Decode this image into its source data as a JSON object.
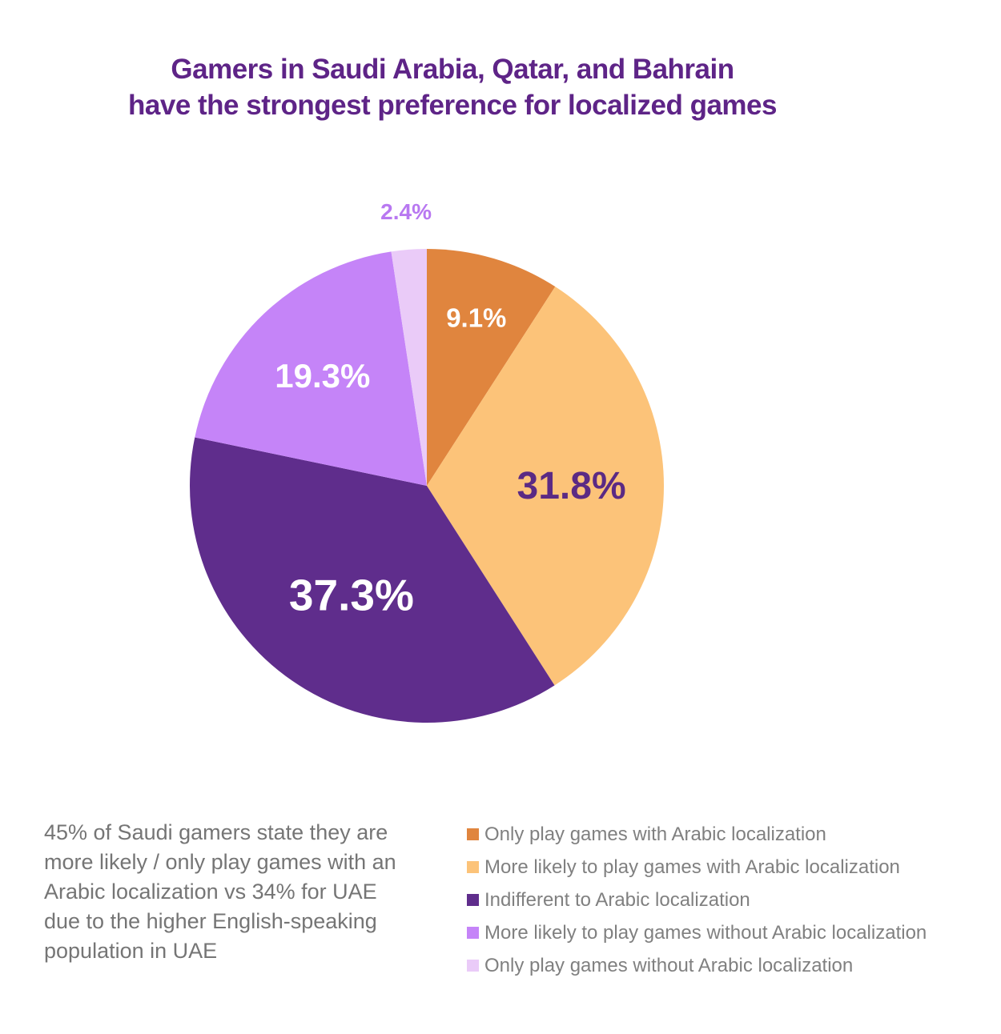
{
  "title": {
    "line1": "Gamers in Saudi Arabia, Qatar, and Bahrain",
    "line2": "have the strongest preference for localized games",
    "color": "#5E2487"
  },
  "annotation": {
    "text": "45% of Saudi gamers state they are more likely / only play games with an Arabic localization vs 34% for UAE due to the higher English-speaking population in UAE",
    "color": "#757575"
  },
  "legend": {
    "text_color": "#808080",
    "items": [
      {
        "label": "Only play games with Arabic localization",
        "color": "#E0853E"
      },
      {
        "label": "More likely to play games with Arabic localization",
        "color": "#FCC379"
      },
      {
        "label": "Indifferent to Arabic localization",
        "color": "#5F2D8C"
      },
      {
        "label": "More likely to play games without Arabic localization",
        "color": "#C584F8"
      },
      {
        "label": "Only play games without Arabic localization",
        "color": "#EACBF8"
      }
    ]
  },
  "chart_data": {
    "type": "pie",
    "title": "Gamers in Saudi Arabia, Qatar, and Bahrain have the strongest preference for localized games",
    "categories": [
      "Only play games with Arabic localization",
      "More likely to play games with Arabic localization",
      "Indifferent to Arabic localization",
      "More likely to play games without Arabic localization",
      "Only play games without Arabic localization"
    ],
    "values": [
      9.1,
      31.8,
      37.3,
      19.3,
      2.4
    ],
    "labels": [
      "9.1%",
      "31.8%",
      "37.3%",
      "19.3%",
      "2.4%"
    ],
    "colors": [
      "#E0853E",
      "#FCC379",
      "#5F2D8C",
      "#C584F8",
      "#EACBF8"
    ],
    "start_angle_deg": 0,
    "direction": "clockwise",
    "legend_position": "bottom-right",
    "slice_label_styles": [
      {
        "radius_frac": 0.74,
        "color": "#FFFFFF",
        "size": 33
      },
      {
        "radius_frac": 0.61,
        "color": "#5B2A84",
        "size": 48
      },
      {
        "radius_frac": 0.56,
        "color": "#FFFFFF",
        "size": 55
      },
      {
        "radius_frac": 0.64,
        "color": "#FFFFFF",
        "size": 42
      },
      {
        "radius_frac": 1.16,
        "color": "#B878F1",
        "size": 28
      }
    ]
  }
}
